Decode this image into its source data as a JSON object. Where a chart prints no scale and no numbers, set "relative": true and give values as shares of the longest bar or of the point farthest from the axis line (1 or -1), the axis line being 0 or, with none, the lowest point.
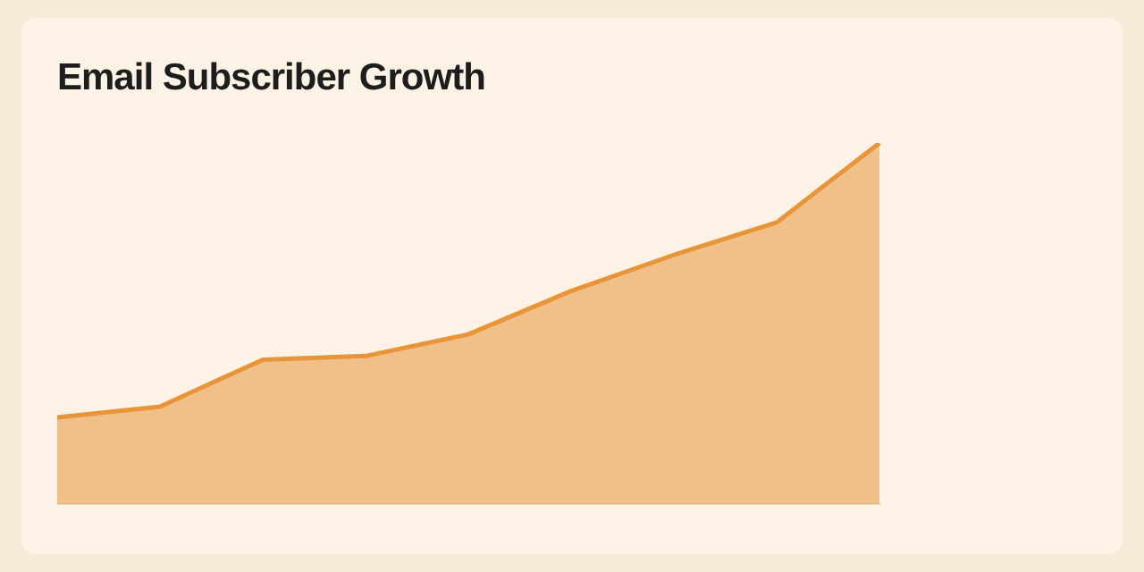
{
  "chart_data": {
    "type": "area",
    "title": "Email Subscriber Growth",
    "relative": true,
    "categories": [
      null,
      null,
      null,
      null,
      null,
      null,
      null,
      null,
      null
    ],
    "series": [
      {
        "color": "#e8953a",
        "values": [
          0.24,
          0.27,
          0.4,
          0.41,
          0.47,
          0.59,
          0.69,
          0.78,
          1
        ]
      }
    ],
    "legend": false
  }
}
